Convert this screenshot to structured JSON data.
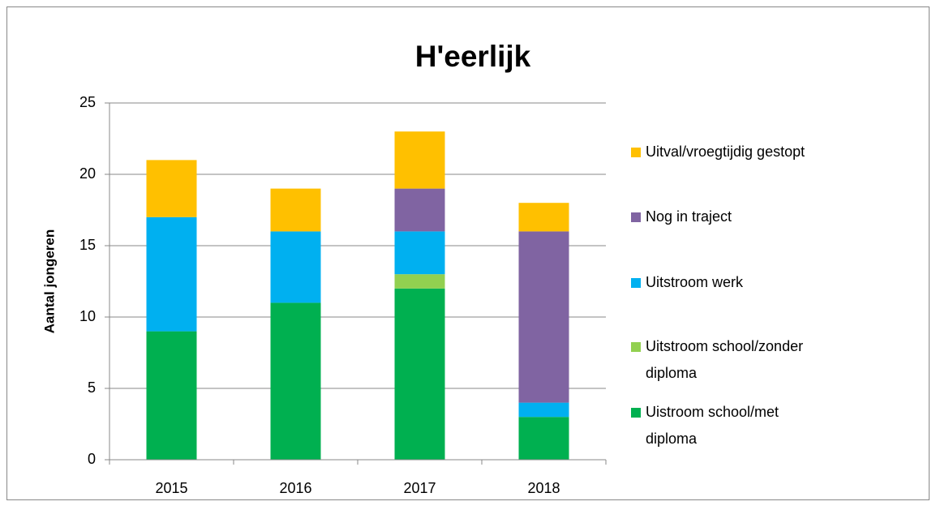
{
  "chart_data": {
    "type": "stacked_bar",
    "title": "H'eerlijk",
    "y_label": "Aantal  jongeren",
    "categories": [
      "2015",
      "2016",
      "2017",
      "2018"
    ],
    "series": [
      {
        "name": "Uistroom school/met diploma",
        "color": "#00b050",
        "values": [
          9,
          11,
          12,
          3
        ]
      },
      {
        "name": "Uitstroom school/zonder diploma",
        "color": "#92d050",
        "values": [
          0,
          0,
          1,
          0
        ]
      },
      {
        "name": "Uitstroom werk",
        "color": "#00b0f0",
        "values": [
          8,
          5,
          3,
          1
        ]
      },
      {
        "name": "Nog in traject",
        "color": "#8064a2",
        "values": [
          0,
          0,
          3,
          12
        ]
      },
      {
        "name": "Uitval/vroegtijdig gestopt",
        "color": "#ffc000",
        "values": [
          4,
          3,
          4,
          2
        ]
      }
    ],
    "ylim": [
      0,
      25
    ],
    "yticks": [
      0,
      5,
      10,
      15,
      20,
      25
    ],
    "grid": true,
    "legend": "right"
  }
}
